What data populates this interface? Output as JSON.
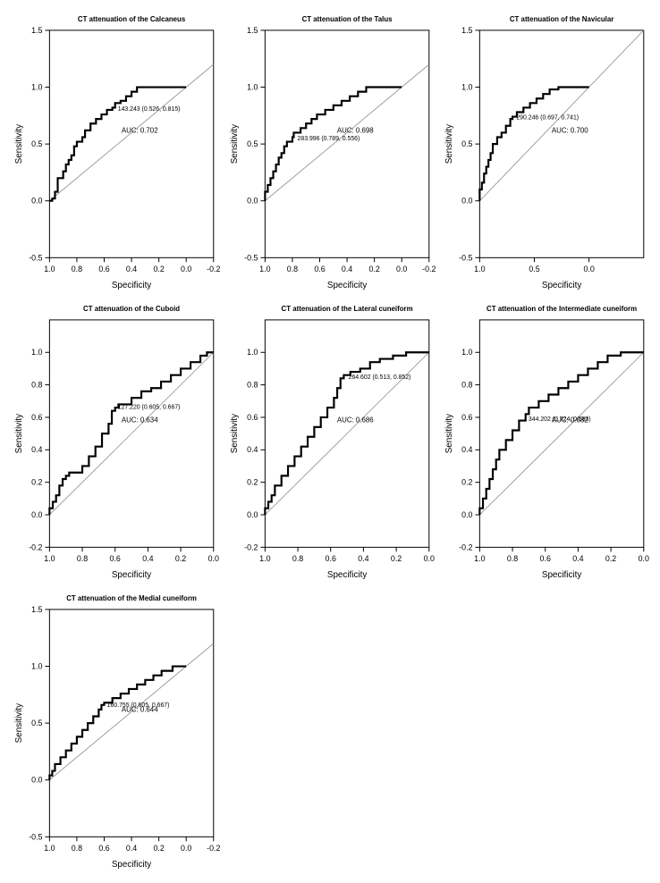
{
  "global": {
    "ylabel": "Sensitivity",
    "xlabel": "Specificity",
    "background": "#ffffff",
    "roc_color": "#000000",
    "roc_width": 2.2,
    "diag_color": "#888888",
    "title_fontsize": 8,
    "label_fontsize": 10,
    "tick_fontsize": 9,
    "annot_fontsize": 7
  },
  "panels": [
    {
      "title": "CT attenuation of the Calcaneus",
      "auc_text": "AUC: 0.702",
      "point_label": "143.243 (0.526, 0.815)",
      "point_xy": [
        0.526,
        0.815
      ],
      "xlim": [
        1.0,
        -0.2
      ],
      "xtick_step": 0.2,
      "xticks": [
        1.0,
        0.8,
        0.6,
        0.4,
        0.2,
        0.0,
        -0.2
      ],
      "ylim": [
        -0.5,
        1.5
      ],
      "ytick_step": 0.5,
      "yticks": [
        -0.5,
        0.0,
        0.5,
        1.0,
        1.5
      ],
      "roc": [
        [
          1.0,
          0.0
        ],
        [
          0.98,
          0.0
        ],
        [
          0.96,
          0.02
        ],
        [
          0.96,
          0.06
        ],
        [
          0.94,
          0.08
        ],
        [
          0.94,
          0.14
        ],
        [
          0.9,
          0.2
        ],
        [
          0.88,
          0.26
        ],
        [
          0.86,
          0.32
        ],
        [
          0.84,
          0.36
        ],
        [
          0.82,
          0.4
        ],
        [
          0.8,
          0.48
        ],
        [
          0.76,
          0.52
        ],
        [
          0.74,
          0.56
        ],
        [
          0.7,
          0.62
        ],
        [
          0.66,
          0.68
        ],
        [
          0.62,
          0.72
        ],
        [
          0.58,
          0.76
        ],
        [
          0.54,
          0.8
        ],
        [
          0.52,
          0.82
        ],
        [
          0.48,
          0.86
        ],
        [
          0.44,
          0.88
        ],
        [
          0.4,
          0.92
        ],
        [
          0.36,
          0.96
        ],
        [
          0.3,
          1.0
        ],
        [
          0.0,
          1.0
        ]
      ]
    },
    {
      "title": "CT attenuation of the Talus",
      "auc_text": "AUC: 0.698",
      "point_label": "283.996 (0.789, 0.556)",
      "point_xy": [
        0.789,
        0.556
      ],
      "xlim": [
        1.0,
        -0.2
      ],
      "xtick_step": 0.2,
      "xticks": [
        1.0,
        0.8,
        0.6,
        0.4,
        0.2,
        0.0,
        -0.2
      ],
      "ylim": [
        -0.5,
        1.5
      ],
      "ytick_step": 0.5,
      "yticks": [
        -0.5,
        0.0,
        0.5,
        1.0,
        1.5
      ],
      "roc": [
        [
          1.0,
          0.0
        ],
        [
          1.0,
          0.04
        ],
        [
          0.98,
          0.08
        ],
        [
          0.96,
          0.14
        ],
        [
          0.94,
          0.2
        ],
        [
          0.92,
          0.26
        ],
        [
          0.9,
          0.32
        ],
        [
          0.88,
          0.38
        ],
        [
          0.86,
          0.42
        ],
        [
          0.84,
          0.48
        ],
        [
          0.8,
          0.52
        ],
        [
          0.79,
          0.56
        ],
        [
          0.74,
          0.6
        ],
        [
          0.7,
          0.64
        ],
        [
          0.66,
          0.68
        ],
        [
          0.62,
          0.72
        ],
        [
          0.56,
          0.76
        ],
        [
          0.5,
          0.8
        ],
        [
          0.44,
          0.84
        ],
        [
          0.38,
          0.88
        ],
        [
          0.32,
          0.92
        ],
        [
          0.26,
          0.96
        ],
        [
          0.16,
          1.0
        ],
        [
          0.0,
          1.0
        ]
      ]
    },
    {
      "title": "CT attenuation of the Navicular",
      "auc_text": "AUC: 0.700",
      "point_label": "290.246 (0.697, 0.741)",
      "point_xy": [
        0.697,
        0.741
      ],
      "xlim": [
        1.0,
        -0.5
      ],
      "xtick_step": 0.5,
      "xticks": [
        1.0,
        0.5,
        0.0
      ],
      "ylim": [
        -0.5,
        1.5
      ],
      "ytick_step": 0.5,
      "yticks": [
        -0.5,
        0.0,
        0.5,
        1.0,
        1.5
      ],
      "roc": [
        [
          1.0,
          0.0
        ],
        [
          1.0,
          0.04
        ],
        [
          0.98,
          0.1
        ],
        [
          0.96,
          0.16
        ],
        [
          0.94,
          0.24
        ],
        [
          0.92,
          0.3
        ],
        [
          0.9,
          0.36
        ],
        [
          0.88,
          0.42
        ],
        [
          0.84,
          0.5
        ],
        [
          0.8,
          0.56
        ],
        [
          0.76,
          0.6
        ],
        [
          0.72,
          0.66
        ],
        [
          0.7,
          0.72
        ],
        [
          0.66,
          0.74
        ],
        [
          0.6,
          0.78
        ],
        [
          0.54,
          0.82
        ],
        [
          0.48,
          0.86
        ],
        [
          0.42,
          0.9
        ],
        [
          0.36,
          0.94
        ],
        [
          0.28,
          0.98
        ],
        [
          0.18,
          1.0
        ],
        [
          0.0,
          1.0
        ]
      ]
    },
    {
      "title": "CT attenuation of the Cuboid",
      "auc_text": "AUC: 0.634",
      "point_label": "127.220 (0.605, 0.667)",
      "point_xy": [
        0.605,
        0.667
      ],
      "xlim": [
        1.0,
        0.0
      ],
      "xtick_step": 0.2,
      "xticks": [
        1.0,
        0.8,
        0.6,
        0.4,
        0.2,
        0.0
      ],
      "ylim": [
        -0.2,
        1.2
      ],
      "ytick_step": 0.2,
      "yticks": [
        -0.2,
        0.0,
        0.2,
        0.4,
        0.6,
        0.8,
        1.0
      ],
      "roc": [
        [
          1.0,
          0.0
        ],
        [
          0.98,
          0.04
        ],
        [
          0.96,
          0.08
        ],
        [
          0.94,
          0.12
        ],
        [
          0.92,
          0.18
        ],
        [
          0.9,
          0.22
        ],
        [
          0.88,
          0.24
        ],
        [
          0.86,
          0.26
        ],
        [
          0.8,
          0.26
        ],
        [
          0.76,
          0.3
        ],
        [
          0.72,
          0.36
        ],
        [
          0.68,
          0.42
        ],
        [
          0.64,
          0.5
        ],
        [
          0.62,
          0.56
        ],
        [
          0.6,
          0.64
        ],
        [
          0.58,
          0.66
        ],
        [
          0.5,
          0.68
        ],
        [
          0.44,
          0.72
        ],
        [
          0.38,
          0.76
        ],
        [
          0.32,
          0.78
        ],
        [
          0.26,
          0.82
        ],
        [
          0.2,
          0.86
        ],
        [
          0.14,
          0.9
        ],
        [
          0.08,
          0.94
        ],
        [
          0.04,
          0.98
        ],
        [
          0.0,
          1.0
        ]
      ]
    },
    {
      "title": "CT attenuation of the Lateral cuneiform",
      "auc_text": "AUC: 0.686",
      "point_label": "264.602 (0.513, 0.852)",
      "point_xy": [
        0.513,
        0.852
      ],
      "xlim": [
        1.0,
        0.0
      ],
      "xtick_step": 0.2,
      "xticks": [
        1.0,
        0.8,
        0.6,
        0.4,
        0.2,
        0.0
      ],
      "ylim": [
        -0.2,
        1.2
      ],
      "ytick_step": 0.2,
      "yticks": [
        -0.2,
        0.0,
        0.2,
        0.4,
        0.6,
        0.8,
        1.0
      ],
      "roc": [
        [
          1.0,
          0.0
        ],
        [
          0.98,
          0.04
        ],
        [
          0.96,
          0.08
        ],
        [
          0.94,
          0.12
        ],
        [
          0.9,
          0.18
        ],
        [
          0.86,
          0.24
        ],
        [
          0.82,
          0.3
        ],
        [
          0.78,
          0.36
        ],
        [
          0.74,
          0.42
        ],
        [
          0.7,
          0.48
        ],
        [
          0.66,
          0.54
        ],
        [
          0.62,
          0.6
        ],
        [
          0.58,
          0.66
        ],
        [
          0.56,
          0.72
        ],
        [
          0.54,
          0.78
        ],
        [
          0.52,
          0.84
        ],
        [
          0.48,
          0.86
        ],
        [
          0.42,
          0.88
        ],
        [
          0.36,
          0.9
        ],
        [
          0.3,
          0.94
        ],
        [
          0.22,
          0.96
        ],
        [
          0.14,
          0.98
        ],
        [
          0.08,
          1.0
        ],
        [
          0.0,
          1.0
        ]
      ]
    },
    {
      "title": "CT attenuation of the Intermediate cuneiform",
      "auc_text": "AUC: 0.682",
      "point_label": "344.202 (0.724, 0.593)",
      "point_xy": [
        0.724,
        0.593
      ],
      "xlim": [
        1.0,
        0.0
      ],
      "xtick_step": 0.2,
      "xticks": [
        1.0,
        0.8,
        0.6,
        0.4,
        0.2,
        0.0
      ],
      "ylim": [
        -0.2,
        1.2
      ],
      "ytick_step": 0.2,
      "yticks": [
        -0.2,
        0.0,
        0.2,
        0.4,
        0.6,
        0.8,
        1.0
      ],
      "roc": [
        [
          1.0,
          0.0
        ],
        [
          0.98,
          0.04
        ],
        [
          0.96,
          0.1
        ],
        [
          0.94,
          0.16
        ],
        [
          0.92,
          0.22
        ],
        [
          0.9,
          0.28
        ],
        [
          0.88,
          0.34
        ],
        [
          0.84,
          0.4
        ],
        [
          0.8,
          0.46
        ],
        [
          0.76,
          0.52
        ],
        [
          0.72,
          0.58
        ],
        [
          0.7,
          0.62
        ],
        [
          0.64,
          0.66
        ],
        [
          0.58,
          0.7
        ],
        [
          0.52,
          0.74
        ],
        [
          0.46,
          0.78
        ],
        [
          0.4,
          0.82
        ],
        [
          0.34,
          0.86
        ],
        [
          0.28,
          0.9
        ],
        [
          0.22,
          0.94
        ],
        [
          0.14,
          0.98
        ],
        [
          0.06,
          1.0
        ],
        [
          0.0,
          1.0
        ]
      ]
    },
    {
      "title": "CT attenuation of the Medial cuneiform",
      "auc_text": "AUC: 0.644",
      "point_label": "160.755 (0.605, 0.667)",
      "point_xy": [
        0.605,
        0.667
      ],
      "xlim": [
        1.0,
        -0.2
      ],
      "xtick_step": 0.2,
      "xticks": [
        1.0,
        0.8,
        0.6,
        0.4,
        0.2,
        0.0,
        -0.2
      ],
      "ylim": [
        -0.5,
        1.5
      ],
      "ytick_step": 0.5,
      "yticks": [
        -0.5,
        0.0,
        0.5,
        1.0,
        1.5
      ],
      "roc": [
        [
          1.0,
          0.0
        ],
        [
          0.98,
          0.04
        ],
        [
          0.96,
          0.08
        ],
        [
          0.92,
          0.14
        ],
        [
          0.88,
          0.2
        ],
        [
          0.84,
          0.26
        ],
        [
          0.8,
          0.32
        ],
        [
          0.76,
          0.38
        ],
        [
          0.72,
          0.44
        ],
        [
          0.68,
          0.5
        ],
        [
          0.64,
          0.56
        ],
        [
          0.62,
          0.62
        ],
        [
          0.6,
          0.66
        ],
        [
          0.54,
          0.68
        ],
        [
          0.48,
          0.72
        ],
        [
          0.42,
          0.76
        ],
        [
          0.36,
          0.8
        ],
        [
          0.3,
          0.84
        ],
        [
          0.24,
          0.88
        ],
        [
          0.18,
          0.92
        ],
        [
          0.1,
          0.96
        ],
        [
          0.04,
          1.0
        ],
        [
          0.0,
          1.0
        ]
      ]
    }
  ]
}
